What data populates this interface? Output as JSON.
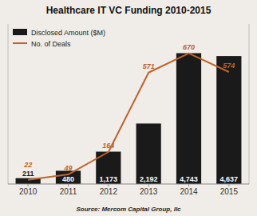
{
  "chart_data": {
    "type": "bar",
    "title": "Healthcare IT VC Funding 2010-2015",
    "categories": [
      "2010",
      "2011",
      "2012",
      "2013",
      "2014",
      "2015"
    ],
    "series": [
      {
        "name": "Disclosed Amount ($M)",
        "type": "bar",
        "color": "#1a1a1a",
        "values": [
          211,
          480,
          1173,
          2192,
          4743,
          4637
        ],
        "value_labels": [
          "211",
          "480",
          "1,173",
          "2,192",
          "4,743",
          "4,637"
        ]
      },
      {
        "name": "No. of Deals",
        "type": "line",
        "color": "#c0622b",
        "axis": "y2",
        "values": [
          22,
          49,
          164,
          571,
          670,
          574
        ]
      }
    ],
    "ylim": [
      0,
      5800
    ],
    "y2lim": [
      0,
      820
    ],
    "data_labels": true,
    "legend": "upper left",
    "tick_labels": "x",
    "annotations": [
      "Source: Mercom Capital Group, llc"
    ]
  }
}
